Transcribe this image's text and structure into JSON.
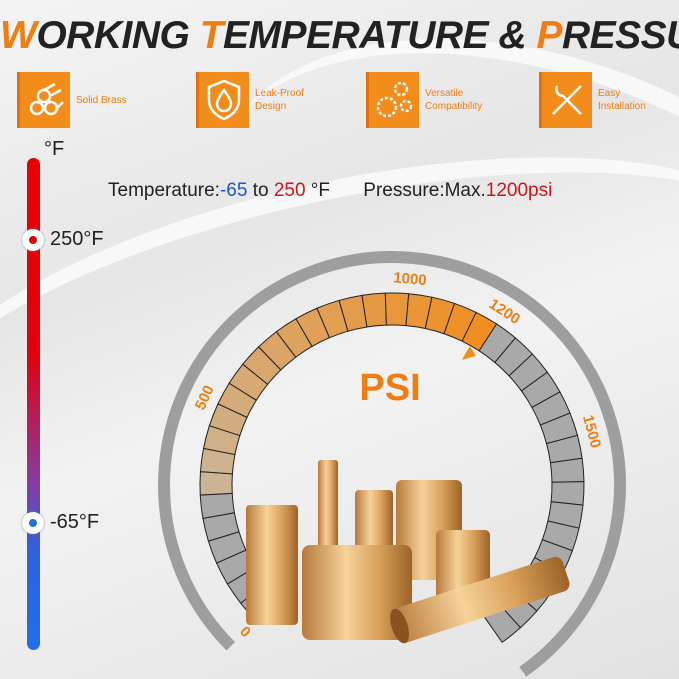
{
  "title": {
    "parts": [
      {
        "t": "W",
        "accent": true
      },
      {
        "t": "ORKING ",
        "accent": false
      },
      {
        "t": "T",
        "accent": true
      },
      {
        "t": "EMPERATURE & ",
        "accent": false
      },
      {
        "t": "P",
        "accent": true
      },
      {
        "t": "RESSURE",
        "accent": false
      }
    ]
  },
  "features": [
    {
      "icon": "brass-rods-icon",
      "label1": "Solid Brass",
      "label2": ""
    },
    {
      "icon": "shield-drop-icon",
      "label1": "Leak-Proof",
      "label2": "Design"
    },
    {
      "icon": "gears-icon",
      "label1": "Versatile",
      "label2": "Compatibility"
    },
    {
      "icon": "tools-icon",
      "label1": "Easy",
      "label2": "Installation"
    }
  ],
  "specs": {
    "temp_label": "Temperature:",
    "temp_min": "-65",
    "temp_to": " to ",
    "temp_max": "250",
    "temp_unit": " °F",
    "pressure_label": "Pressure:Max.",
    "pressure_max": "1200psi"
  },
  "thermometer": {
    "unit": "°F",
    "high": "250°F",
    "low": "-65°F"
  },
  "gauge": {
    "unit": "PSI",
    "value": 1200,
    "min": 0,
    "max": 2000,
    "labels": [
      "0",
      "500",
      "1000",
      "1200",
      "1500"
    ],
    "accent": "#f28c1a",
    "track": "#a9a9a9"
  },
  "colors": {
    "accent": "#f28c1a",
    "blue": "#1e56c8",
    "red": "#d0141b"
  }
}
